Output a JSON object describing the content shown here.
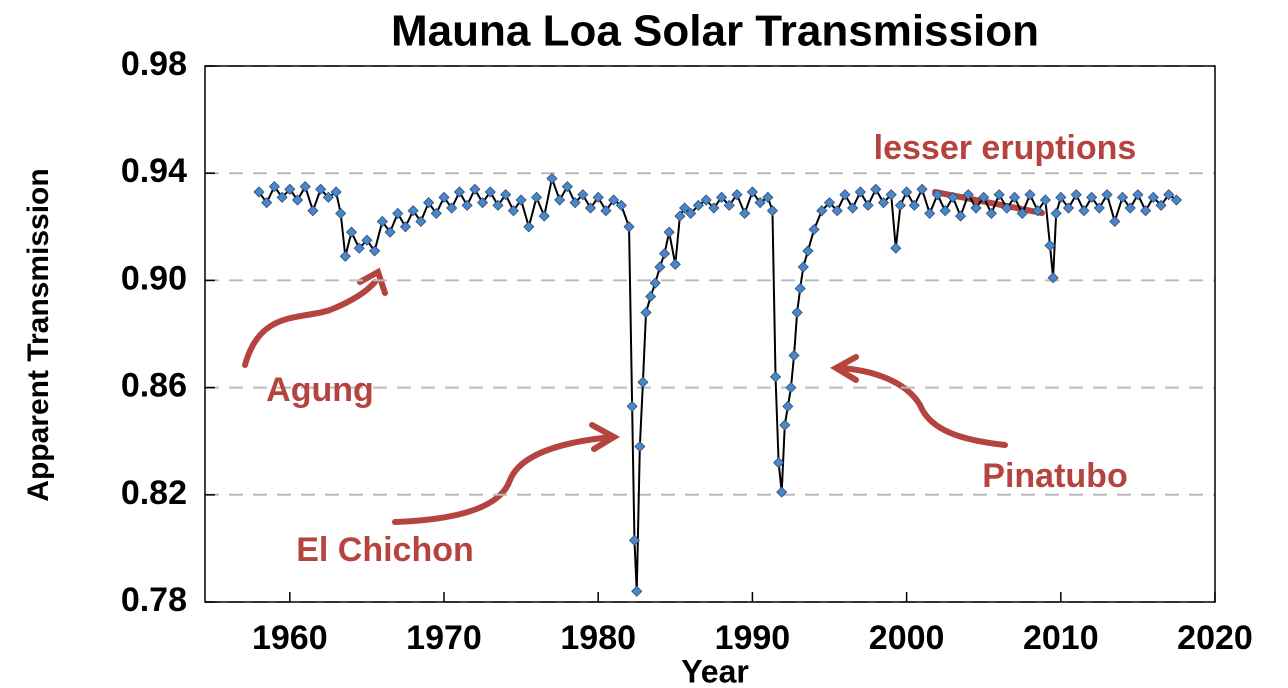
{
  "chart_data": {
    "type": "line",
    "title": "Mauna Loa Solar Transmission",
    "x_label": "Year",
    "y_label": "Apparent Transmission",
    "annotations": [
      "lesser eruptions",
      "Agung",
      "El Chichon",
      "Pinatubo"
    ],
    "color": "#000000",
    "marker_color": "#4a86c8",
    "annotation_color": "#b5433f",
    "xlim": [
      1954.5,
      2020
    ],
    "xticks": [
      1960,
      1970,
      1980,
      1990,
      2000,
      2010,
      2020
    ],
    "ylim": [
      0.78,
      0.98
    ],
    "yticks": [
      0.78,
      0.82,
      0.86,
      {
        "value": 0.9,
        "label": "0.90"
      },
      0.94,
      0.98
    ],
    "grid": true,
    "x": [
      1958.0,
      1958.5,
      1959.0,
      1959.5,
      1960.0,
      1960.5,
      1961.0,
      1961.5,
      1962.0,
      1962.5,
      1963.0,
      1963.3,
      1963.6,
      1964.0,
      1964.5,
      1965.0,
      1965.5,
      1966.0,
      1966.5,
      1967.0,
      1967.5,
      1968.0,
      1968.5,
      1969.0,
      1969.5,
      1970.0,
      1970.5,
      1971.0,
      1971.5,
      1972.0,
      1972.5,
      1973.0,
      1973.5,
      1974.0,
      1974.5,
      1975.0,
      1975.5,
      1976.0,
      1976.5,
      1977.0,
      1977.5,
      1978.0,
      1978.5,
      1979.0,
      1979.5,
      1980.0,
      1980.5,
      1981.0,
      1981.5,
      1982.0,
      1982.2,
      1982.35,
      1982.5,
      1982.7,
      1982.9,
      1983.1,
      1983.4,
      1983.7,
      1984.0,
      1984.3,
      1984.6,
      1985.0,
      1985.3,
      1985.6,
      1986.0,
      1986.5,
      1987.0,
      1987.5,
      1988.0,
      1988.5,
      1989.0,
      1989.5,
      1990.0,
      1990.5,
      1991.0,
      1991.3,
      1991.5,
      1991.7,
      1991.9,
      1992.1,
      1992.3,
      1992.5,
      1992.7,
      1992.9,
      1993.1,
      1993.3,
      1993.6,
      1994.0,
      1994.5,
      1995.0,
      1995.5,
      1996.0,
      1996.5,
      1997.0,
      1997.5,
      1998.0,
      1998.5,
      1999.0,
      1999.3,
      1999.6,
      2000.0,
      2000.5,
      2001.0,
      2001.5,
      2002.0,
      2002.5,
      2003.0,
      2003.5,
      2004.0,
      2004.5,
      2005.0,
      2005.5,
      2006.0,
      2006.5,
      2007.0,
      2007.5,
      2008.0,
      2008.5,
      2009.0,
      2009.3,
      2009.5,
      2009.7,
      2010.0,
      2010.5,
      2011.0,
      2011.5,
      2012.0,
      2012.5,
      2013.0,
      2013.5,
      2014.0,
      2014.5,
      2015.0,
      2015.5,
      2016.0,
      2016.5,
      2017.0,
      2017.5
    ],
    "values": [
      0.933,
      0.929,
      0.935,
      0.931,
      0.934,
      0.93,
      0.935,
      0.926,
      0.934,
      0.931,
      0.933,
      0.925,
      0.909,
      0.918,
      0.912,
      0.915,
      0.911,
      0.922,
      0.918,
      0.925,
      0.92,
      0.926,
      0.922,
      0.929,
      0.925,
      0.931,
      0.927,
      0.933,
      0.928,
      0.934,
      0.929,
      0.933,
      0.928,
      0.932,
      0.926,
      0.93,
      0.92,
      0.931,
      0.924,
      0.938,
      0.93,
      0.935,
      0.929,
      0.932,
      0.927,
      0.931,
      0.926,
      0.93,
      0.928,
      0.92,
      0.853,
      0.803,
      0.784,
      0.838,
      0.862,
      0.888,
      0.894,
      0.899,
      0.905,
      0.91,
      0.918,
      0.906,
      0.924,
      0.927,
      0.925,
      0.928,
      0.93,
      0.927,
      0.931,
      0.928,
      0.932,
      0.925,
      0.933,
      0.929,
      0.931,
      0.926,
      0.864,
      0.832,
      0.821,
      0.846,
      0.853,
      0.86,
      0.872,
      0.888,
      0.897,
      0.905,
      0.911,
      0.919,
      0.926,
      0.929,
      0.926,
      0.932,
      0.927,
      0.933,
      0.928,
      0.934,
      0.929,
      0.932,
      0.912,
      0.928,
      0.933,
      0.928,
      0.934,
      0.925,
      0.932,
      0.926,
      0.931,
      0.924,
      0.932,
      0.927,
      0.931,
      0.925,
      0.932,
      0.927,
      0.931,
      0.925,
      0.932,
      0.926,
      0.93,
      0.913,
      0.901,
      0.925,
      0.931,
      0.927,
      0.932,
      0.926,
      0.931,
      0.927,
      0.932,
      0.922,
      0.931,
      0.927,
      0.932,
      0.926,
      0.931,
      0.928,
      0.932,
      0.93
    ]
  }
}
